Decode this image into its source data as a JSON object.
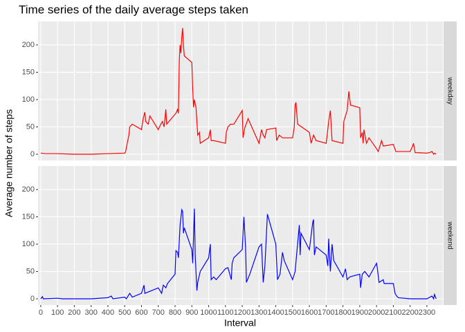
{
  "chart_data": {
    "type": "line",
    "title": "Time series of the daily average steps taken",
    "xlabel": "Interval",
    "ylabel": "Average number of steps",
    "xlim": [
      -16,
      2395
    ],
    "xticks": [
      0,
      100,
      200,
      300,
      400,
      500,
      600,
      700,
      800,
      900,
      1000,
      1100,
      1200,
      1300,
      1400,
      1500,
      1600,
      1700,
      1800,
      1900,
      2000,
      2100,
      2200,
      2300
    ],
    "ylim": [
      -11.4,
      243
    ],
    "yticks": [
      0,
      50,
      100,
      150,
      200
    ],
    "grid": true,
    "series": [
      {
        "name": "weekday",
        "color": "#ff0000",
        "x": [
          0,
          30,
          55,
          100,
          200,
          300,
          400,
          500,
          505,
          515,
          525,
          530,
          545,
          600,
          610,
          620,
          625,
          640,
          650,
          700,
          715,
          725,
          735,
          745,
          750,
          805,
          815,
          820,
          825,
          830,
          835,
          840,
          845,
          850,
          855,
          900,
          905,
          910,
          915,
          925,
          935,
          945,
          950,
          1000,
          1010,
          1015,
          1030,
          1100,
          1105,
          1115,
          1130,
          1150,
          1200,
          1205,
          1215,
          1235,
          1300,
          1315,
          1325,
          1335,
          1345,
          1400,
          1405,
          1420,
          1440,
          1500,
          1510,
          1515,
          1520,
          1530,
          1600,
          1610,
          1625,
          1640,
          1700,
          1715,
          1725,
          1735,
          1800,
          1805,
          1825,
          1835,
          1845,
          1900,
          1905,
          1915,
          1920,
          1925,
          1940,
          1955,
          2000,
          2010,
          2030,
          2040,
          2100,
          2115,
          2200,
          2215,
          2220,
          2230,
          2300,
          2315,
          2330,
          2340,
          2345,
          2355
        ],
        "values": [
          2,
          1,
          1,
          1,
          0,
          0,
          1,
          2,
          4,
          20,
          35,
          50,
          55,
          45,
          65,
          77,
          60,
          55,
          70,
          45,
          55,
          60,
          50,
          82,
          55,
          75,
          82,
          75,
          170,
          200,
          185,
          215,
          231,
          200,
          180,
          168,
          120,
          86,
          100,
          85,
          35,
          40,
          20,
          30,
          45,
          25,
          25,
          20,
          40,
          50,
          55,
          55,
          80,
          30,
          48,
          65,
          20,
          45,
          35,
          30,
          45,
          48,
          25,
          35,
          30,
          30,
          50,
          90,
          95,
          55,
          40,
          20,
          35,
          25,
          20,
          60,
          80,
          25,
          20,
          60,
          80,
          115,
          90,
          85,
          30,
          40,
          20,
          45,
          20,
          30,
          10,
          5,
          25,
          15,
          18,
          5,
          5,
          15,
          20,
          3,
          2,
          3,
          5,
          0,
          2,
          0
        ]
      },
      {
        "name": "weekend",
        "color": "#0000ff",
        "x": [
          0,
          10,
          15,
          100,
          130,
          300,
          400,
          420,
          430,
          500,
          510,
          530,
          545,
          600,
          615,
          620,
          700,
          720,
          730,
          745,
          755,
          800,
          805,
          815,
          820,
          830,
          840,
          845,
          850,
          855,
          900,
          905,
          915,
          920,
          930,
          935,
          950,
          1000,
          1010,
          1015,
          1030,
          1045,
          1100,
          1115,
          1135,
          1140,
          1150,
          1200,
          1210,
          1220,
          1225,
          1245,
          1300,
          1315,
          1325,
          1335,
          1350,
          1400,
          1410,
          1425,
          1440,
          1450,
          1500,
          1515,
          1540,
          1545,
          1550,
          1600,
          1620,
          1625,
          1630,
          1640,
          1700,
          1710,
          1715,
          1725,
          1735,
          1745,
          1800,
          1815,
          1825,
          1840,
          1900,
          1905,
          1915,
          1930,
          1955,
          2000,
          2005,
          2015,
          2040,
          2045,
          2100,
          2110,
          2120,
          2130,
          2200,
          2300,
          2330,
          2340,
          2345,
          2355
        ],
        "values": [
          0,
          4,
          0,
          1,
          0,
          0,
          2,
          5,
          0,
          3,
          0,
          10,
          3,
          10,
          25,
          10,
          20,
          10,
          25,
          20,
          28,
          45,
          88,
          85,
          75,
          135,
          163,
          160,
          120,
          130,
          90,
          65,
          165,
          80,
          15,
          30,
          50,
          75,
          100,
          35,
          40,
          35,
          55,
          57,
          35,
          65,
          75,
          90,
          150,
          95,
          30,
          45,
          95,
          100,
          30,
          60,
          155,
          100,
          35,
          45,
          85,
          70,
          35,
          50,
          135,
          80,
          120,
          90,
          140,
          145,
          80,
          95,
          80,
          60,
          110,
          50,
          100,
          70,
          40,
          55,
          35,
          40,
          45,
          20,
          45,
          50,
          40,
          65,
          55,
          30,
          35,
          28,
          28,
          10,
          5,
          2,
          0,
          0,
          5,
          0,
          8,
          0
        ]
      }
    ]
  }
}
